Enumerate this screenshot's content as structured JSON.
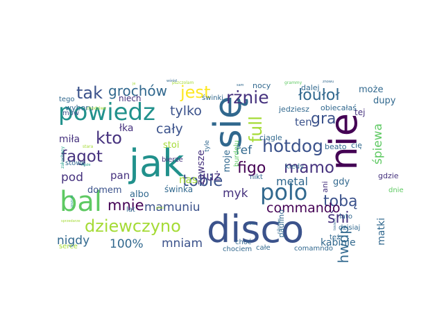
{
  "palette": {
    "deep_purple": "#440154",
    "dark_blue": "#3b528b",
    "teal": "#21918c",
    "blue": "#31688e",
    "green": "#5ec962",
    "light_green": "#a5db36",
    "yellow": "#fde725",
    "navy": "#46327e",
    "sea_green": "#1f9e89"
  },
  "words": [
    {
      "text": "disco",
      "c": "dark_blue"
    },
    {
      "text": "jak",
      "c": "teal"
    },
    {
      "text": "nie",
      "c": "deep_purple"
    },
    {
      "text": "się",
      "c": "blue"
    },
    {
      "text": "bal",
      "c": "green"
    },
    {
      "text": "powiedz",
      "c": "teal"
    },
    {
      "text": "polo",
      "c": "blue"
    },
    {
      "text": "rżnie",
      "c": "navy"
    },
    {
      "text": "hotdog",
      "c": "dark_blue"
    },
    {
      "text": "full",
      "c": "light_green"
    },
    {
      "text": "dziewczyno",
      "c": "light_green"
    },
    {
      "text": "tak",
      "c": "dark_blue"
    },
    {
      "text": "grochów",
      "c": "blue"
    },
    {
      "text": "jest",
      "c": "yellow"
    },
    {
      "text": "łoułoł",
      "c": "blue"
    },
    {
      "text": "kto",
      "c": "navy"
    },
    {
      "text": "fagot",
      "c": "navy"
    },
    {
      "text": "tobie",
      "c": "dark_blue"
    },
    {
      "text": "mnie",
      "c": "deep_purple"
    },
    {
      "text": "mamo",
      "c": "navy"
    },
    {
      "text": "figo",
      "c": "deep_purple"
    },
    {
      "text": "gra",
      "c": "dark_blue"
    },
    {
      "text": "śni",
      "c": "navy"
    },
    {
      "text": "tobą",
      "c": "dark_blue"
    },
    {
      "text": "commando",
      "c": "deep_purple"
    },
    {
      "text": "hwdp",
      "c": "blue"
    },
    {
      "text": "cały",
      "c": "dark_blue"
    },
    {
      "text": "tylko",
      "c": "dark_blue"
    },
    {
      "text": "myk",
      "c": "navy"
    },
    {
      "text": "ref",
      "c": "blue"
    },
    {
      "text": "już",
      "c": "navy"
    },
    {
      "text": "pod",
      "c": "navy"
    },
    {
      "text": "mamuniu",
      "c": "dark_blue"
    },
    {
      "text": "metal",
      "c": "blue"
    },
    {
      "text": "100%",
      "c": "blue"
    },
    {
      "text": "mniam",
      "c": "dark_blue"
    },
    {
      "text": "nigdy",
      "c": "blue"
    },
    {
      "text": "śpiewa",
      "c": "green"
    },
    {
      "text": "kabinie",
      "c": "blue"
    },
    {
      "text": "miła",
      "c": "navy"
    },
    {
      "text": "łka",
      "c": "navy"
    },
    {
      "text": "zawsze",
      "c": "navy"
    },
    {
      "text": "moje",
      "c": "blue"
    },
    {
      "text": "nas",
      "c": "light_green"
    },
    {
      "text": "pan",
      "c": "navy"
    },
    {
      "text": "stoi",
      "c": "light_green"
    },
    {
      "text": "świnka",
      "c": "blue"
    },
    {
      "text": "albo",
      "c": "blue"
    },
    {
      "text": "domem",
      "c": "dark_blue"
    },
    {
      "text": "matki",
      "c": "blue"
    },
    {
      "text": "ten",
      "c": "dark_blue"
    },
    {
      "text": "tej",
      "c": "navy"
    },
    {
      "text": "może",
      "c": "blue"
    },
    {
      "text": "dupy",
      "c": "blue"
    },
    {
      "text": "gdy",
      "c": "blue"
    },
    {
      "text": "niech",
      "c": "navy"
    },
    {
      "text": "wyboru",
      "c": "blue"
    },
    {
      "text": "tego",
      "c": "blue"
    },
    {
      "text": "mów",
      "c": "dark_blue"
    },
    {
      "text": "świnki",
      "c": "blue"
    },
    {
      "text": "nocy",
      "c": "blue"
    },
    {
      "text": "dalej",
      "c": "blue"
    },
    {
      "text": "obiecałaś",
      "c": "blue"
    },
    {
      "text": "jedziesz",
      "c": "blue"
    },
    {
      "text": "ciągle",
      "c": "blue"
    },
    {
      "text": "beato",
      "c": "blue"
    },
    {
      "text": "cię",
      "c": "blue"
    },
    {
      "text": "gdzie",
      "c": "navy"
    },
    {
      "text": "dzisiaj",
      "c": "blue"
    },
    {
      "text": "dnie",
      "c": "green"
    },
    {
      "text": "ani",
      "c": "navy"
    },
    {
      "text": "kiedy",
      "c": "blue"
    },
    {
      "text": "lato",
      "c": "blue"
    },
    {
      "text": "też",
      "c": "blue"
    },
    {
      "text": "nikt",
      "c": "blue"
    },
    {
      "text": "paulino",
      "c": "blue"
    },
    {
      "text": "choć",
      "c": "blue"
    },
    {
      "text": "chociem",
      "c": "blue"
    },
    {
      "text": "całe",
      "c": "blue"
    },
    {
      "text": "comamndo",
      "c": "blue"
    },
    {
      "text": "serce",
      "c": "light_green"
    },
    {
      "text": "bierze",
      "c": "navy"
    },
    {
      "text": "lat",
      "c": "blue"
    },
    {
      "text": "stówę",
      "c": "blue"
    },
    {
      "text": "tyle",
      "c": "blue"
    },
    {
      "text": "burdelu",
      "c": "green"
    },
    {
      "text": "chodziwe",
      "c": "light_green"
    },
    {
      "text": "stara",
      "c": "light_green"
    },
    {
      "text": "zakochany",
      "c": "sea_green"
    },
    {
      "text": "grammy",
      "c": "green"
    },
    {
      "text": "pszczolam",
      "c": "light_green"
    },
    {
      "text": "nikomu",
      "c": "blue"
    },
    {
      "text": "puss",
      "c": "blue"
    },
    {
      "text": "tosiem",
      "c": "blue"
    },
    {
      "text": "sprzedarze",
      "c": "light_green"
    },
    {
      "text": "znowu",
      "c": "blue"
    },
    {
      "text": "sam",
      "c": "blue"
    },
    {
      "text": "je",
      "c": "light_green"
    },
    {
      "text": "jeszcze",
      "c": "sea_green"
    },
    {
      "text": "może",
      "c": "sea_green"
    },
    {
      "text": "wśród",
      "c": "blue"
    },
    {
      "text": "płaci",
      "c": "light_green"
    }
  ]
}
